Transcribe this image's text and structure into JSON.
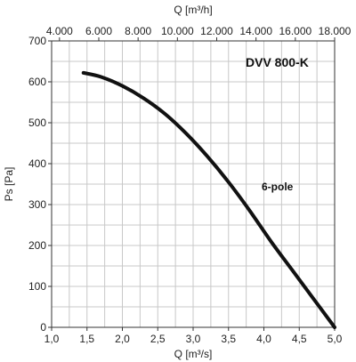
{
  "chart_data": {
    "type": "line",
    "title": "DVV 800-K",
    "xlabel": "Q [m³/s]",
    "x2label": "Q [m³/h]",
    "ylabel": "Ps [Pa]",
    "xlim": [
      1.0,
      5.0
    ],
    "ylim": [
      0,
      700
    ],
    "x2lim": [
      3600,
      18000
    ],
    "grid": true,
    "x_ticks": [
      1.0,
      1.5,
      2.0,
      2.5,
      3.0,
      3.5,
      4.0,
      4.5,
      5.0
    ],
    "x_tick_labels": [
      "1,0",
      "1,5",
      "2,0",
      "2,5",
      "3,0",
      "3,5",
      "4,0",
      "4,5",
      "5,0"
    ],
    "y_ticks": [
      0,
      100,
      200,
      300,
      400,
      500,
      600,
      700
    ],
    "y_tick_labels": [
      "0",
      "100",
      "200",
      "300",
      "400",
      "500",
      "600",
      "700"
    ],
    "x2_ticks": [
      4000,
      6000,
      8000,
      10000,
      12000,
      14000,
      16000,
      18000
    ],
    "x2_tick_labels": [
      "4.000",
      "6.000",
      "8.000",
      "10.000",
      "12.000",
      "14.000",
      "16.000",
      "18.000"
    ],
    "series": [
      {
        "name": "6-pole",
        "color": "#111111",
        "x": [
          1.45,
          1.7,
          2.0,
          2.3,
          2.6,
          2.9,
          3.2,
          3.5,
          3.8,
          4.1,
          4.4,
          4.7,
          5.0
        ],
        "y": [
          622,
          612,
          590,
          560,
          522,
          474,
          418,
          355,
          285,
          210,
          140,
          70,
          0
        ]
      }
    ]
  }
}
